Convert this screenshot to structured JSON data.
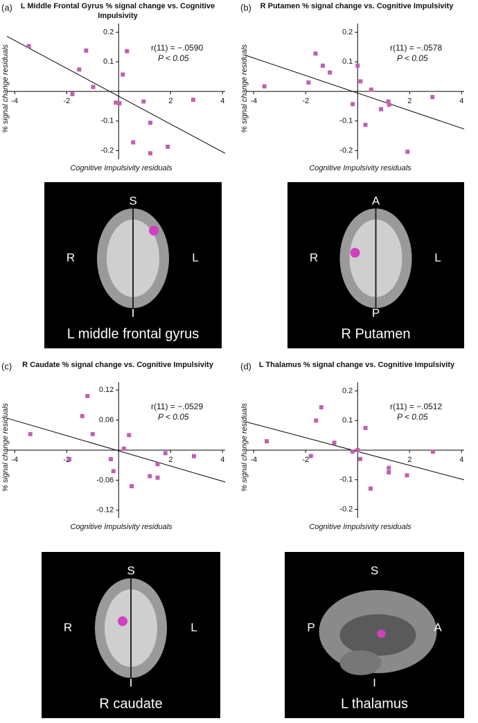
{
  "chart_data": [
    {
      "type": "scatter",
      "panel": "(a)",
      "title": "L Middle Frontal Gyrus % signal change vs. Cognitive Impulsivity",
      "annotation": [
        "r(11) = −.0590",
        "P < 0.05"
      ],
      "xlabel": "Cognitive Impulsivity residuals",
      "ylabel": "% signal change residuals",
      "color": "#c060b0",
      "x": [
        -3.46,
        -1.25,
        -1.52,
        -0.98,
        -1.78,
        0.32,
        0.16,
        -0.11,
        0.03,
        0.96,
        1.22,
        0.56,
        1.22,
        1.89,
        2.87
      ],
      "y": [
        0.153,
        0.138,
        0.074,
        0.015,
        -0.009,
        0.136,
        0.057,
        -0.038,
        -0.04,
        -0.034,
        -0.106,
        -0.172,
        -0.209,
        -0.187,
        -0.028
      ],
      "xlim": [
        -4.3,
        4.1
      ],
      "ylim": [
        -0.22,
        0.22
      ],
      "xticks": [
        -4,
        -2,
        2,
        4
      ],
      "yticks": [
        -0.2,
        -0.1,
        0.1,
        0.2
      ]
    },
    {
      "type": "scatter",
      "panel": "(b)",
      "title": "R Putamen % signal change vs. Cognitive Impulsivity",
      "annotation": [
        "r(11) = −.0578",
        "P < 0.05"
      ],
      "xlabel": "Cognitive Impulsivity residuals",
      "ylabel": "% signal change residuals",
      "color": "#c060b0",
      "x": [
        -3.59,
        -1.89,
        -1.62,
        -1.34,
        -1.07,
        0.0,
        0.11,
        -0.19,
        0.3,
        0.52,
        0.9,
        1.18,
        1.21,
        1.92,
        2.88
      ],
      "y": [
        0.017,
        0.03,
        0.128,
        0.087,
        0.064,
        0.087,
        0.034,
        -0.043,
        -0.113,
        0.006,
        -0.06,
        -0.034,
        -0.045,
        -0.204,
        -0.019
      ],
      "xlim": [
        -4.3,
        4.1
      ],
      "ylim": [
        -0.22,
        0.22
      ],
      "xticks": [
        -4,
        -2,
        2,
        4
      ],
      "yticks": [
        -0.2,
        -0.1,
        0.1,
        0.2
      ]
    },
    {
      "type": "scatter",
      "panel": "(c)",
      "title": "R Caudate % signal change vs. Cognitive Impulsivity",
      "annotation": [
        "r(11) = −.0529",
        "P < 0.05"
      ],
      "xlabel": "Cognitive Impulsivity residuals",
      "ylabel": "% signal change residuals",
      "color": "#c060b0",
      "x": [
        -3.4,
        -1.2,
        -1.4,
        -1.0,
        -1.9,
        -0.3,
        -0.2,
        0.2,
        0.4,
        0.5,
        1.2,
        1.5,
        1.5,
        1.8,
        2.9
      ],
      "y": [
        0.032,
        0.108,
        0.068,
        0.032,
        -0.018,
        -0.018,
        -0.042,
        0.003,
        0.03,
        -0.072,
        -0.052,
        -0.028,
        -0.055,
        -0.006,
        -0.012
      ],
      "xlim": [
        -4.3,
        4.1
      ],
      "ylim": [
        -0.13,
        0.13
      ],
      "xticks": [
        -4,
        -2,
        2,
        4
      ],
      "yticks": [
        -0.12,
        -0.06,
        0.06,
        0.12
      ]
    },
    {
      "type": "scatter",
      "panel": "(d)",
      "title": "L Thalamus % signal change vs. Cognitive Impulsivity",
      "annotation": [
        "r(11) = −.0512",
        "P < 0.05"
      ],
      "xlabel": "Cognitive Impulsivity residuals",
      "ylabel": "% signal change residuals",
      "color": "#c060b0",
      "x": [
        -3.5,
        -1.8,
        -1.6,
        -1.4,
        -0.9,
        -0.2,
        0.0,
        0.1,
        0.3,
        0.5,
        1.2,
        1.2,
        1.9,
        2.9
      ],
      "y": [
        0.03,
        -0.02,
        0.1,
        0.145,
        0.025,
        -0.005,
        0.0,
        -0.03,
        0.075,
        -0.13,
        -0.06,
        -0.075,
        -0.085,
        -0.005
      ],
      "xlim": [
        -4.3,
        4.1
      ],
      "ylim": [
        -0.22,
        0.22
      ],
      "xticks": [
        -4,
        -2,
        2,
        4
      ],
      "yticks": [
        -0.2,
        -0.1,
        0.1,
        0.2
      ]
    }
  ],
  "images": [
    {
      "top": "S",
      "left": "R",
      "right": "L",
      "bottom": "I",
      "region": "L middle frontal gyrus"
    },
    {
      "top": "A",
      "left": "R",
      "right": "L",
      "bottom": "P",
      "region": "R Putamen"
    },
    {
      "top": "S",
      "left": "R",
      "right": "L",
      "bottom": "I",
      "region": "R caudate"
    },
    {
      "top": "S",
      "left": "P",
      "right": "A",
      "bottom": "I",
      "region": "L thalamus"
    }
  ]
}
